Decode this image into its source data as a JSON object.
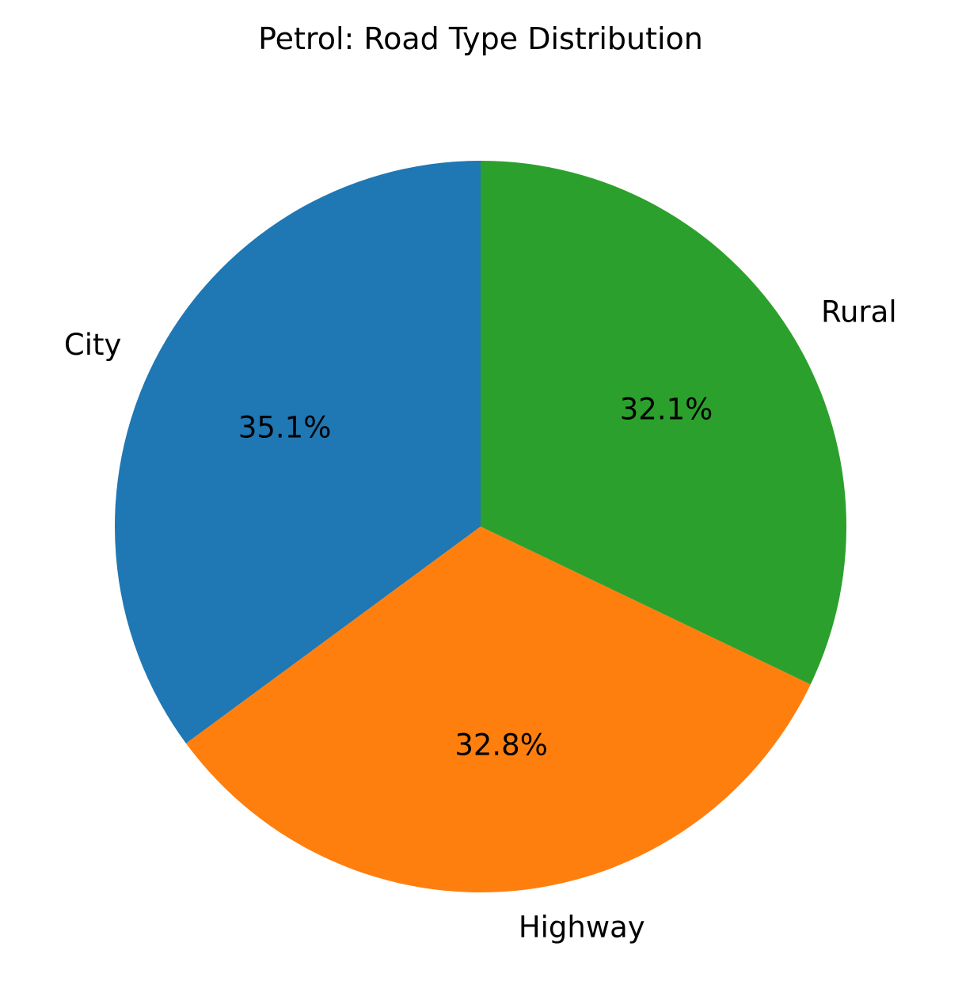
{
  "chart_data": {
    "type": "pie",
    "title": "Petrol: Road Type Distribution",
    "categories": [
      "City",
      "Highway",
      "Rural"
    ],
    "values": [
      35.1,
      32.8,
      32.1
    ],
    "value_labels": [
      "35.1%",
      "32.8%",
      "32.1%"
    ],
    "colors": [
      "#1f77b4",
      "#ff7f0e",
      "#2ca02c"
    ],
    "start_angle": 90,
    "direction": "counterclockwise",
    "legend": "none"
  }
}
